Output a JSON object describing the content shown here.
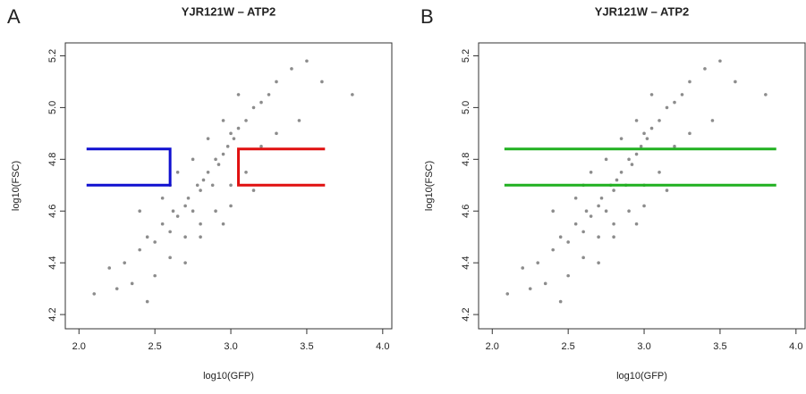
{
  "chart_data": [
    {
      "type": "scatter",
      "label": "A",
      "title": "YJR121W – ATP2",
      "x_label": "log10(GFP)",
      "y_label": "log10(FSC)",
      "color": "rgba(0,0,0,0.45)",
      "x": [
        2.3,
        2.4,
        2.45,
        2.5,
        2.55,
        2.6,
        2.62,
        2.65,
        2.7,
        2.72,
        2.75,
        2.78,
        2.8,
        2.82,
        2.85,
        2.88,
        2.9,
        2.92,
        2.95,
        2.98,
        3.0,
        3.02,
        3.05,
        3.1,
        3.15,
        3.2,
        3.25,
        3.3,
        3.4,
        3.5,
        2.2,
        2.35,
        2.5,
        2.6,
        2.7,
        2.8,
        2.9,
        3.0,
        3.1,
        3.2,
        2.55,
        2.65,
        2.75,
        2.85,
        2.95,
        3.05,
        2.4,
        2.6,
        2.8,
        3.0,
        3.3,
        3.6,
        3.8,
        2.1,
        2.25,
        2.45,
        2.7,
        2.95,
        3.15,
        3.45
      ],
      "values": [
        4.4,
        4.45,
        4.5,
        4.48,
        4.55,
        4.52,
        4.6,
        4.58,
        4.62,
        4.65,
        4.6,
        4.7,
        4.68,
        4.72,
        4.75,
        4.7,
        4.8,
        4.78,
        4.82,
        4.85,
        4.9,
        4.88,
        4.92,
        4.95,
        5.0,
        5.02,
        5.05,
        5.1,
        5.15,
        5.18,
        4.38,
        4.32,
        4.35,
        4.42,
        4.5,
        4.55,
        4.6,
        4.7,
        4.75,
        4.85,
        4.65,
        4.75,
        4.8,
        4.88,
        4.95,
        5.05,
        4.6,
        4.7,
        4.5,
        4.62,
        4.9,
        5.1,
        5.05,
        4.28,
        4.3,
        4.25,
        4.4,
        4.55,
        4.68,
        4.95
      ],
      "gates": [
        {
          "color": "#1010d0",
          "x": [
            2.05,
            2.6,
            2.6,
            2.05
          ],
          "y": [
            4.84,
            4.84,
            4.7,
            4.7
          ]
        },
        {
          "color": "#e01010",
          "x": [
            3.62,
            3.05,
            3.05,
            3.62
          ],
          "y": [
            4.84,
            4.84,
            4.7,
            4.7
          ]
        }
      ],
      "xlim": [
        1.91,
        4.06
      ],
      "ylim": [
        4.145,
        5.25
      ],
      "xticks": [
        {
          "value": 2,
          "label": "2.0"
        },
        2.5,
        {
          "value": 3,
          "label": "3.0"
        },
        3.5,
        {
          "value": 4,
          "label": "4.0"
        }
      ],
      "yticks": [
        4.2,
        4.4,
        4.6,
        4.8,
        {
          "value": 5,
          "label": "5.0"
        },
        5.2
      ]
    },
    {
      "type": "scatter",
      "label": "B",
      "title": "YJR121W – ATP2",
      "x_label": "log10(GFP)",
      "y_label": "log10(FSC)",
      "color": "rgba(0,0,0,0.45)",
      "x": [
        2.3,
        2.4,
        2.45,
        2.5,
        2.55,
        2.6,
        2.62,
        2.65,
        2.7,
        2.72,
        2.75,
        2.78,
        2.8,
        2.82,
        2.85,
        2.88,
        2.9,
        2.92,
        2.95,
        2.98,
        3.0,
        3.02,
        3.05,
        3.1,
        3.15,
        3.2,
        3.25,
        3.3,
        3.4,
        3.5,
        2.2,
        2.35,
        2.5,
        2.6,
        2.7,
        2.8,
        2.9,
        3.0,
        3.1,
        3.2,
        2.55,
        2.65,
        2.75,
        2.85,
        2.95,
        3.05,
        2.4,
        2.6,
        2.8,
        3.0,
        3.3,
        3.6,
        3.8,
        2.1,
        2.25,
        2.45,
        2.7,
        2.95,
        3.15,
        3.45
      ],
      "values": [
        4.4,
        4.45,
        4.5,
        4.48,
        4.55,
        4.52,
        4.6,
        4.58,
        4.62,
        4.65,
        4.6,
        4.7,
        4.68,
        4.72,
        4.75,
        4.7,
        4.8,
        4.78,
        4.82,
        4.85,
        4.9,
        4.88,
        4.92,
        4.95,
        5.0,
        5.02,
        5.05,
        5.1,
        5.15,
        5.18,
        4.38,
        4.32,
        4.35,
        4.42,
        4.5,
        4.55,
        4.6,
        4.7,
        4.75,
        4.85,
        4.65,
        4.75,
        4.8,
        4.88,
        4.95,
        5.05,
        4.6,
        4.7,
        4.5,
        4.62,
        4.9,
        5.1,
        5.05,
        4.28,
        4.3,
        4.25,
        4.4,
        4.55,
        4.68,
        4.95
      ],
      "gates": [
        {
          "color": "#20b020",
          "x": [
            2.08,
            3.87,
            null,
            2.08,
            3.87
          ],
          "y": [
            4.84,
            4.84,
            null,
            4.7,
            4.7
          ]
        }
      ],
      "xlim": [
        1.91,
        4.06
      ],
      "ylim": [
        4.145,
        5.25
      ],
      "xticks": [
        {
          "value": 2,
          "label": "2.0"
        },
        2.5,
        {
          "value": 3,
          "label": "3.0"
        },
        3.5,
        {
          "value": 4,
          "label": "4.0"
        }
      ],
      "yticks": [
        4.2,
        4.4,
        4.6,
        4.8,
        {
          "value": 5,
          "label": "5.0"
        },
        5.2
      ]
    }
  ]
}
